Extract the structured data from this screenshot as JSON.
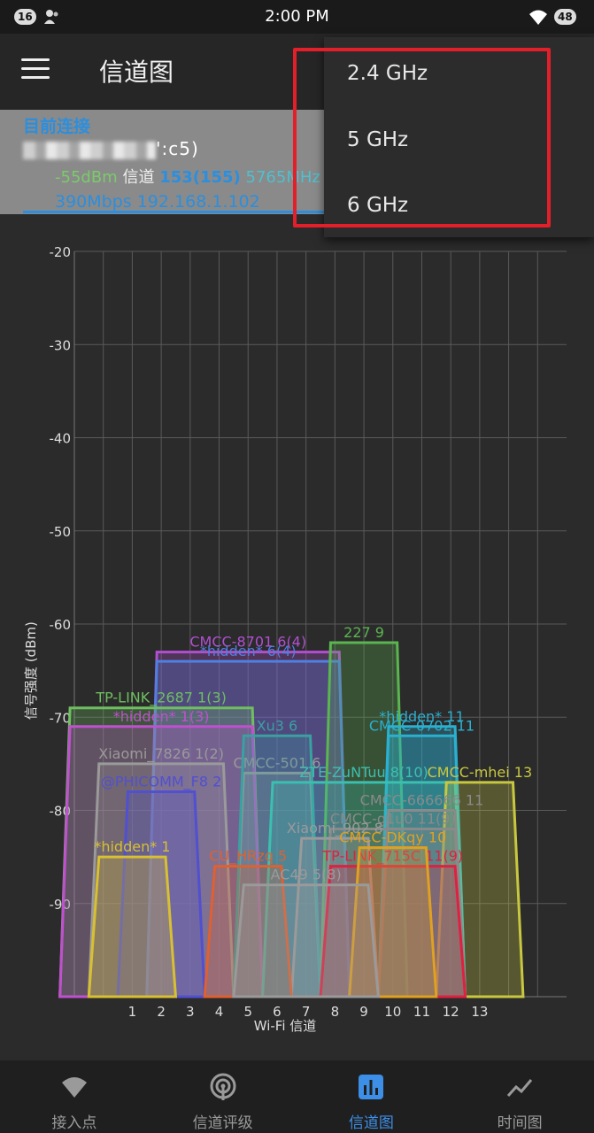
{
  "status_bar": {
    "time": "2:00 PM",
    "notification_badge": "16",
    "battery": "48"
  },
  "app_bar": {
    "title": "信道图"
  },
  "connection": {
    "title": "目前连接",
    "mac_suffix": "':c5)",
    "signal": "-55dBm",
    "channel_label": "信道",
    "channel": "153(155)",
    "freq": "5765MHz",
    "speed_ip": "390Mbps 192.168.1.102"
  },
  "dropdown": {
    "items": [
      "2.4 GHz",
      "5 GHz",
      "6 GHz"
    ]
  },
  "chart_data": {
    "type": "area",
    "ylabel": "信号强度 (dBm)",
    "xlabel": "Wi-Fi 信道",
    "y_ticks": [
      -20,
      -30,
      -40,
      -50,
      -60,
      -70,
      -80,
      -90
    ],
    "ylim": [
      -100,
      -20
    ],
    "x_ticks": [
      1,
      2,
      3,
      4,
      5,
      6,
      7,
      8,
      9,
      10,
      11,
      12,
      13
    ],
    "xlim": [
      -1,
      16
    ],
    "grid": true,
    "networks": [
      {
        "label": "CMCC-8701 6(4)",
        "channel": 5,
        "width": 7,
        "level": -63,
        "color": "#b04fd0"
      },
      {
        "label": "*hidden* 6(4)",
        "channel": 5,
        "width": 7,
        "level": -64,
        "color": "#4f7fe0"
      },
      {
        "label": "227 9",
        "channel": 9,
        "width": 3,
        "level": -62,
        "color": "#5bb550"
      },
      {
        "label": "TP-LINK_2687 1(3)",
        "channel": 2,
        "width": 7,
        "level": -69,
        "color": "#6fbf60"
      },
      {
        "label": "*hidden* 1(3)",
        "channel": 2,
        "width": 7,
        "level": -71,
        "color": "#c050d0"
      },
      {
        "label": "Xiaomi_7826 1(2)",
        "channel": 2,
        "width": 5,
        "level": -75,
        "color": "#9a9a9a"
      },
      {
        "label": "CMCC-501 6",
        "channel": 6,
        "width": 3,
        "level": -76,
        "color": "#9a9a9a"
      },
      {
        "label": "Xu3 6",
        "channel": 6,
        "width": 3,
        "level": -72,
        "color": "#3aa0a0"
      },
      {
        "label": "*hidden* 11",
        "channel": 11,
        "width": 3,
        "level": -71,
        "color": "#2ab0d0"
      },
      {
        "label": "CMCC-0702 11",
        "channel": 11,
        "width": 3,
        "level": -72,
        "color": "#2ab0d0"
      },
      {
        "label": "ZTE-ZuNTuu 8(10)",
        "channel": 9,
        "width": 7,
        "level": -77,
        "color": "#3ac0b0"
      },
      {
        "label": "CMCC-mhei 13",
        "channel": 13,
        "width": 3,
        "level": -77,
        "color": "#c8c840"
      },
      {
        "label": "@PHICOMM_F8 2",
        "channel": 2,
        "width": 3,
        "level": -78,
        "color": "#5050d0"
      },
      {
        "label": "CMCC-666666 11",
        "channel": 11,
        "width": 3,
        "level": -80,
        "color": "#8a8a8a"
      },
      {
        "label": "CMCC-g1u0 11(9)",
        "channel": 10,
        "width": 5,
        "level": -82,
        "color": "#8a8a8a"
      },
      {
        "label": "*hidden* 1",
        "channel": 1,
        "width": 3,
        "level": -85,
        "color": "#d8c030"
      },
      {
        "label": "Xiaomi_902 8",
        "channel": 8,
        "width": 3,
        "level": -83,
        "color": "#9a9a9a"
      },
      {
        "label": "CU_HRzq 5",
        "channel": 5,
        "width": 3,
        "level": -86,
        "color": "#e06030"
      },
      {
        "label": "TP-LINK_715C 11(9)",
        "channel": 10,
        "width": 5,
        "level": -86,
        "color": "#e02040"
      },
      {
        "label": "CMCC-DKqy 10",
        "channel": 10,
        "width": 3,
        "level": -84,
        "color": "#e0a020"
      },
      {
        "label": "AC49 5(8)",
        "channel": 7,
        "width": 5,
        "level": -88,
        "color": "#9a9a9a"
      }
    ]
  },
  "bottom_nav": {
    "items": [
      {
        "label": "接入点"
      },
      {
        "label": "信道评级"
      },
      {
        "label": "信道图"
      },
      {
        "label": "时间图"
      }
    ],
    "active_index": 2
  },
  "colors": {
    "accent": "#3d8ee6",
    "highlight_box": "#e3202a"
  }
}
